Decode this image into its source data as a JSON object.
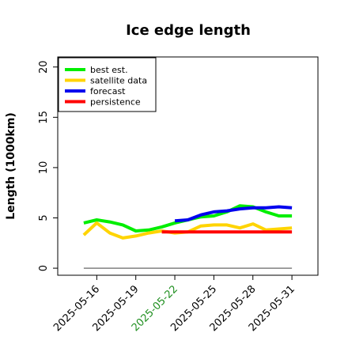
{
  "chart_data": {
    "type": "line",
    "title": "Ice edge length",
    "xlabel": "",
    "ylabel": "Length (1000km)",
    "ylim": [
      -0.7,
      21
    ],
    "yticks": [
      0,
      5,
      10,
      15,
      20
    ],
    "xticks": [
      "2025-05-16",
      "2025-05-19",
      "2025-05-22",
      "2025-05-25",
      "2025-05-28",
      "2025-05-31"
    ],
    "xticks_highlight": "2025-05-22",
    "xticks_highlight_color": "#1f8f1f",
    "xrange": [
      "2025-05-13",
      "2025-06-02"
    ],
    "baseline": {
      "y": 0,
      "color": "#808080"
    },
    "legend": {
      "position": "top-left"
    },
    "series": [
      {
        "name": "best est.",
        "color": "#00ee00",
        "x": [
          "2025-05-15",
          "2025-05-16",
          "2025-05-17",
          "2025-05-18",
          "2025-05-19",
          "2025-05-20",
          "2025-05-21",
          "2025-05-22",
          "2025-05-23",
          "2025-05-24",
          "2025-05-25",
          "2025-05-26",
          "2025-05-27",
          "2025-05-28",
          "2025-05-29",
          "2025-05-30",
          "2025-05-31"
        ],
        "y": [
          4.5,
          4.8,
          4.6,
          4.3,
          3.7,
          3.8,
          4.1,
          4.5,
          4.8,
          5.1,
          5.2,
          5.6,
          6.2,
          6.1,
          5.6,
          5.2,
          5.2
        ]
      },
      {
        "name": "satellite data",
        "color": "#ffd400",
        "x": [
          "2025-05-15",
          "2025-05-16",
          "2025-05-17",
          "2025-05-18",
          "2025-05-19",
          "2025-05-20",
          "2025-05-21",
          "2025-05-22",
          "2025-05-23",
          "2025-05-24",
          "2025-05-25",
          "2025-05-26",
          "2025-05-27",
          "2025-05-28",
          "2025-05-29",
          "2025-05-30",
          "2025-05-31"
        ],
        "y": [
          3.3,
          4.5,
          3.5,
          3.0,
          3.2,
          3.5,
          3.7,
          3.5,
          3.6,
          4.2,
          4.3,
          4.3,
          4.0,
          4.4,
          3.8,
          3.9,
          4.0
        ]
      },
      {
        "name": "forecast",
        "color": "#0000ee",
        "x": [
          "2025-05-22",
          "2025-05-23",
          "2025-05-24",
          "2025-05-25",
          "2025-05-26",
          "2025-05-27",
          "2025-05-28",
          "2025-05-29",
          "2025-05-30",
          "2025-05-31"
        ],
        "y": [
          4.7,
          4.8,
          5.3,
          5.6,
          5.7,
          5.9,
          6.0,
          6.0,
          6.1,
          6.0
        ]
      },
      {
        "name": "persistence",
        "color": "#ff0000",
        "x": [
          "2025-05-21",
          "2025-05-31"
        ],
        "y": [
          3.6,
          3.6
        ]
      }
    ]
  }
}
